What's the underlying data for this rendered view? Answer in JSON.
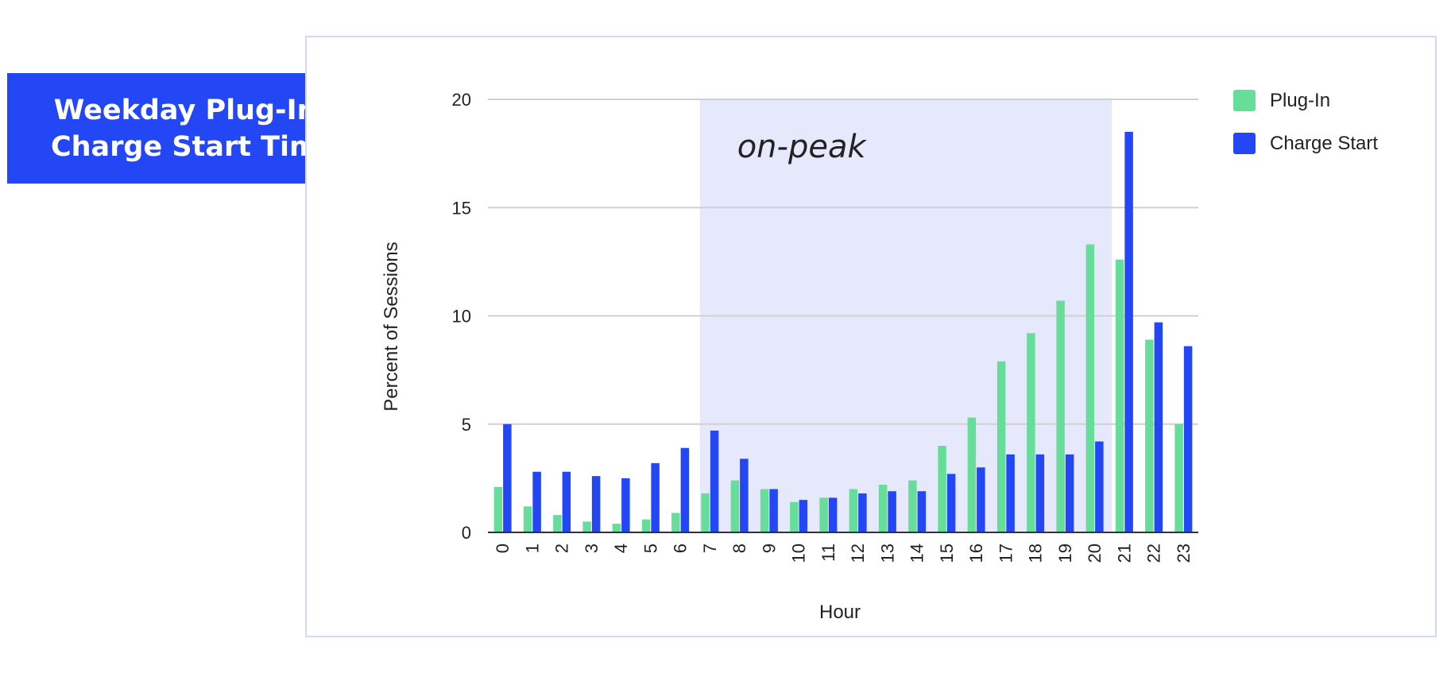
{
  "title": "Weekday Plug-In &\nCharge Start Times",
  "colors": {
    "plug_in": "#66dd99",
    "charge_start": "#2447f5",
    "title_bg": "#2447f5",
    "peak_band": "#e6e9fc",
    "grid": "#d0d0d0"
  },
  "chart_data": {
    "type": "bar",
    "xlabel": "Hour",
    "ylabel": "Percent of Sessions",
    "ylim": [
      0,
      20
    ],
    "yticks": [
      0,
      5,
      10,
      15,
      20
    ],
    "grid": true,
    "legend_position": "top-right",
    "categories": [
      "0",
      "1",
      "2",
      "3",
      "4",
      "5",
      "6",
      "7",
      "8",
      "9",
      "10",
      "11",
      "12",
      "13",
      "14",
      "15",
      "16",
      "17",
      "18",
      "19",
      "20",
      "21",
      "22",
      "23"
    ],
    "series": [
      {
        "name": "Plug-In",
        "values": [
          2.1,
          1.2,
          0.8,
          0.5,
          0.4,
          0.6,
          0.9,
          1.8,
          2.4,
          2.0,
          1.4,
          1.6,
          2.0,
          2.2,
          2.4,
          4.0,
          5.3,
          7.9,
          9.2,
          10.7,
          13.3,
          12.6,
          8.9,
          5.0
        ]
      },
      {
        "name": "Charge Start",
        "values": [
          5.0,
          2.8,
          2.8,
          2.6,
          2.5,
          3.2,
          3.9,
          4.7,
          3.4,
          2.0,
          1.5,
          1.6,
          1.8,
          1.9,
          1.9,
          2.7,
          3.0,
          3.6,
          3.6,
          3.6,
          4.2,
          18.5,
          9.7,
          8.6
        ]
      }
    ],
    "annotations": [
      {
        "text": "on-peak",
        "x_start": "7",
        "x_end": "20"
      }
    ]
  }
}
